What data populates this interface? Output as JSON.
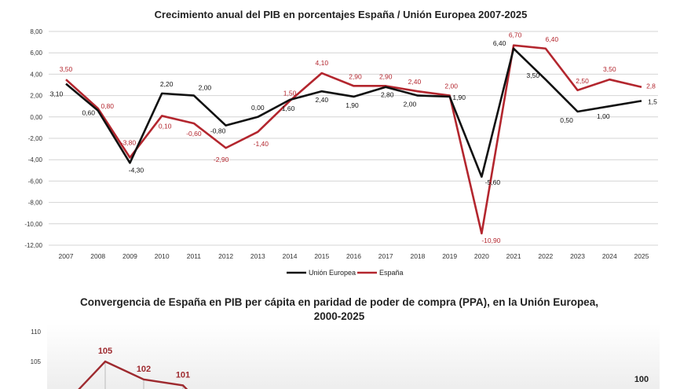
{
  "chart_data": [
    {
      "type": "line",
      "title": "Crecimiento anual del PIB en porcentajes España / Unión Europea 2007-2025",
      "xlabel": "",
      "ylabel": "",
      "ylim": [
        -12,
        8
      ],
      "yticks": [
        "8,00",
        "6,00",
        "4,00",
        "2,00",
        "0,00",
        "-2,00",
        "-4,00",
        "-6,00",
        "-8,00",
        "-10,00",
        "-12,00"
      ],
      "grid": true,
      "legend": "bottom",
      "categories": [
        "2007",
        "2008",
        "2009",
        "2010",
        "2011",
        "2012",
        "2013",
        "2014",
        "2015",
        "2016",
        "2017",
        "2018",
        "2019",
        "2020",
        "2021",
        "2022",
        "2023",
        "2024",
        "2025"
      ],
      "series": [
        {
          "name": "Unión Europea",
          "color": "#111111",
          "values": [
            3.1,
            0.6,
            -4.3,
            2.2,
            2.0,
            -0.8,
            0.0,
            1.6,
            2.4,
            1.9,
            2.8,
            2.0,
            1.9,
            -5.6,
            6.4,
            3.5,
            0.5,
            1.0,
            1.5
          ],
          "labels": [
            "3,10",
            "0,60",
            "-4,30",
            "2,20",
            "2,00",
            "-0,80",
            "0,00",
            "1,60",
            "2,40",
            "1,90",
            "2,80",
            "2,00",
            "1,90",
            "-5,60",
            "6,40",
            "3,50",
            "0,50",
            "1,00",
            "1,5"
          ]
        },
        {
          "name": "España",
          "color": "#b3262e",
          "values": [
            3.5,
            0.8,
            -3.8,
            0.1,
            -0.6,
            -2.9,
            -1.4,
            1.5,
            4.1,
            2.9,
            2.9,
            2.4,
            2.0,
            -10.9,
            6.7,
            6.4,
            2.5,
            3.5,
            2.8
          ],
          "labels": [
            "3,50",
            "0,80",
            "-3,80",
            "0,10",
            "-0,60",
            "-2,90",
            "-1,40",
            "1,50",
            "4,10",
            "2,90",
            "2,90",
            "2,40",
            "2,00",
            "-10,90",
            "6,70",
            "6,40",
            "2,50",
            "3,50",
            "2,8"
          ]
        }
      ]
    },
    {
      "type": "line",
      "title": "Convergencia de España en  PIB per cápita en paridad de poder de compra (PPA), en la Unión Europea,",
      "title_line2": "2000-2025",
      "yticks": [
        "110",
        "105",
        "100"
      ],
      "ylim": [
        100,
        110
      ],
      "series": [
        {
          "name": "",
          "color": "#9e2a2f",
          "values": [
            100,
            105,
            102,
            101,
            99
          ],
          "labels": [
            "",
            "105",
            "102",
            "101",
            ""
          ]
        }
      ],
      "reference_label": "100"
    }
  ]
}
